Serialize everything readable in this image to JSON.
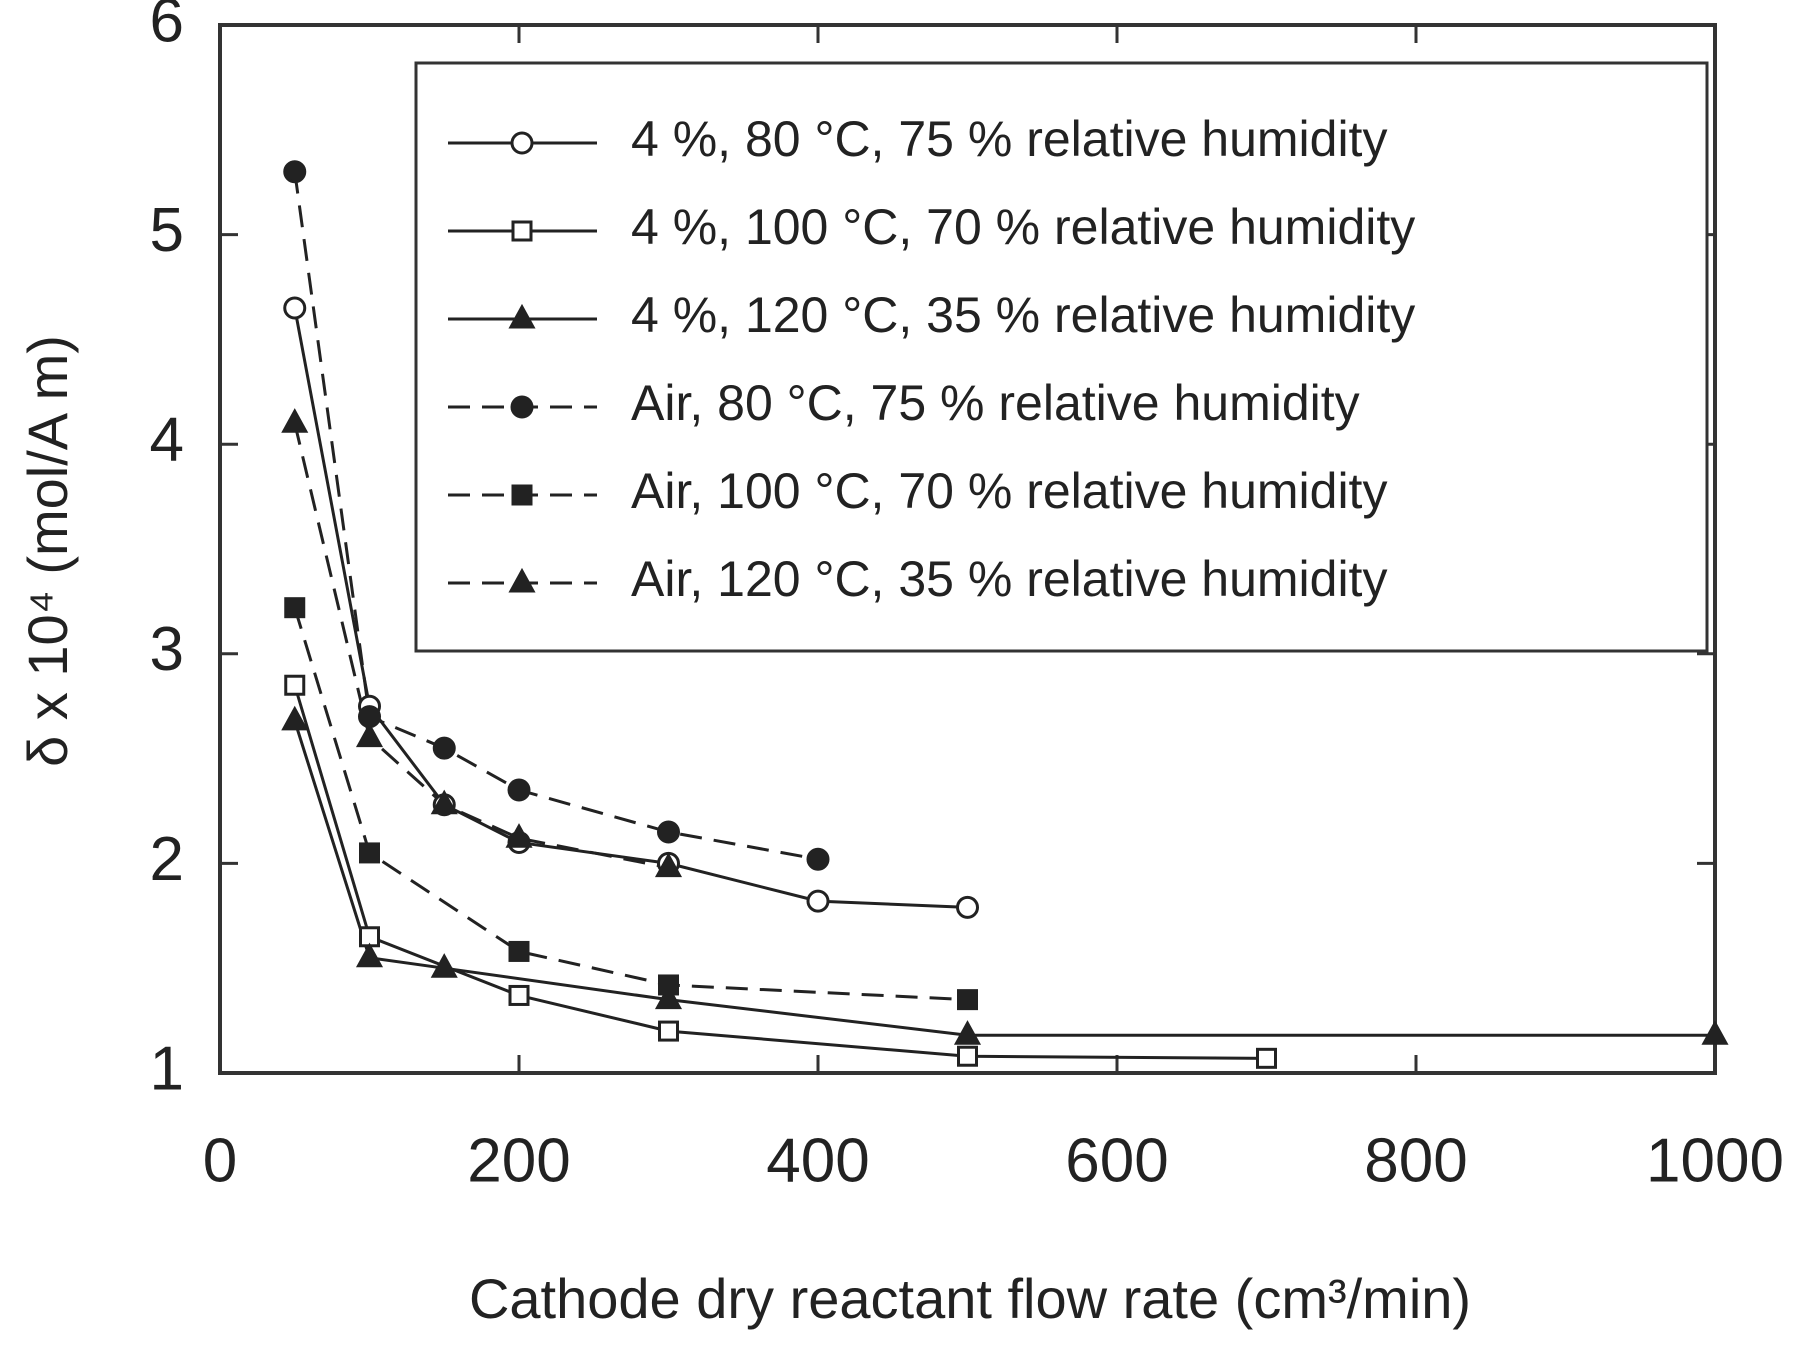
{
  "chart_data": {
    "type": "line",
    "xlabel": "Cathode dry reactant flow rate (cm³/min)",
    "ylabel": "δ x 10⁴ (mol/A m)",
    "xlim": [
      0,
      1000
    ],
    "xticks": [
      0,
      200,
      400,
      600,
      800,
      1000
    ],
    "ylim": [
      1,
      6
    ],
    "yticks": [
      1,
      2,
      3,
      4,
      5,
      6
    ],
    "legend": "upper right",
    "series": [
      {
        "name": "4 %, 80 °C, 75 % relative humidity",
        "color": "#222222",
        "marker": "circle",
        "marker_fill": "open",
        "line_style": "solid",
        "x": [
          50,
          100,
          150,
          200,
          300,
          400,
          500
        ],
        "values": [
          4.65,
          2.75,
          2.28,
          2.1,
          2.0,
          1.82,
          1.79
        ]
      },
      {
        "name": "4 %, 100 °C, 70 % relative humidity",
        "color": "#222222",
        "marker": "square",
        "marker_fill": "open",
        "line_style": "solid",
        "x": [
          50,
          100,
          200,
          300,
          500,
          700
        ],
        "values": [
          2.85,
          1.65,
          1.37,
          1.2,
          1.08,
          1.07
        ]
      },
      {
        "name": "4 %, 120 °C, 35 % relative humidity",
        "color": "#222222",
        "marker": "triangle",
        "marker_fill": "filled",
        "line_style": "solid",
        "x": [
          50,
          100,
          150,
          300,
          500,
          1000
        ],
        "values": [
          2.68,
          1.55,
          1.5,
          1.35,
          1.18,
          1.18
        ]
      },
      {
        "name": "Air, 80 °C, 75 % relative humidity",
        "color": "#222222",
        "marker": "circle",
        "marker_fill": "filled",
        "line_style": "dashed",
        "x": [
          50,
          100,
          150,
          200,
          300,
          400
        ],
        "values": [
          5.3,
          2.7,
          2.55,
          2.35,
          2.15,
          2.02
        ]
      },
      {
        "name": "Air, 100 °C, 70 % relative humidity",
        "color": "#222222",
        "marker": "square",
        "marker_fill": "filled",
        "line_style": "dashed",
        "x": [
          50,
          100,
          200,
          300,
          500
        ],
        "values": [
          3.22,
          2.05,
          1.58,
          1.42,
          1.35
        ]
      },
      {
        "name": "Air, 120 °C, 35 % relative humidity",
        "color": "#222222",
        "marker": "triangle",
        "marker_fill": "filled",
        "line_style": "dashed",
        "x": [
          50,
          100,
          150,
          200,
          300
        ],
        "values": [
          4.1,
          2.6,
          2.28,
          2.12,
          1.98
        ]
      }
    ]
  }
}
